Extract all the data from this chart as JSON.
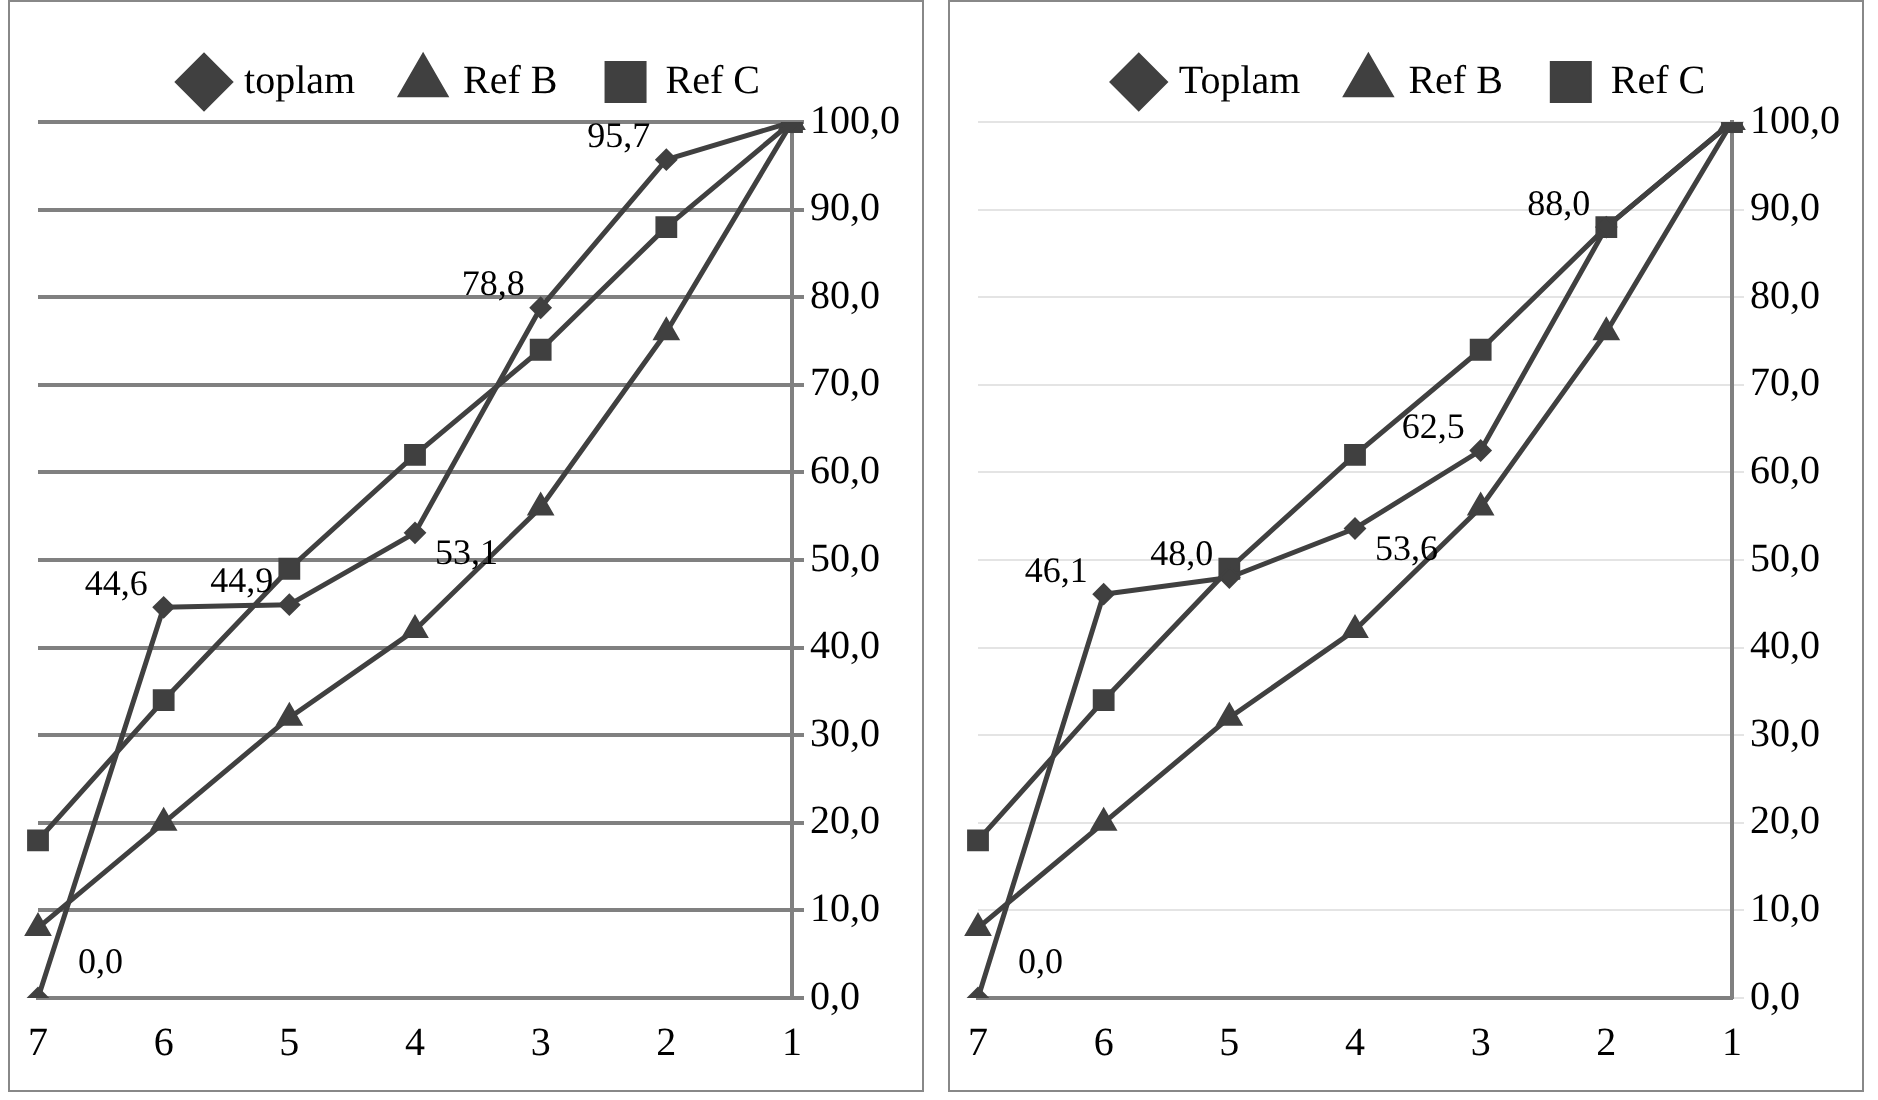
{
  "chart_data": [
    {
      "type": "line",
      "categories": [
        "7",
        "6",
        "5",
        "4",
        "3",
        "2",
        "1"
      ],
      "ylim": [
        0,
        100
      ],
      "yticks": [
        {
          "value": 0,
          "label": "0,0"
        },
        {
          "value": 10,
          "label": "10,0"
        },
        {
          "value": 20,
          "label": "20,0"
        },
        {
          "value": 30,
          "label": "30,0"
        },
        {
          "value": 40,
          "label": "40,0"
        },
        {
          "value": 50,
          "label": "50,0"
        },
        {
          "value": 60,
          "label": "60,0"
        },
        {
          "value": 70,
          "label": "70,0"
        },
        {
          "value": 80,
          "label": "80,0"
        },
        {
          "value": 90,
          "label": "90,0"
        },
        {
          "value": 100,
          "label": "100,0"
        }
      ],
      "grid": "y",
      "legend": "top",
      "series": [
        {
          "name": "toplam",
          "color": "#404040",
          "marker": "diamond",
          "values": [
            0,
            44.6,
            44.9,
            53.1,
            78.8,
            95.7,
            100
          ],
          "value_labels": [
            "0,0",
            "44,6",
            "44,9",
            "53,1",
            "78,8",
            "95,7",
            null
          ]
        },
        {
          "name": "Ref B",
          "color": "#404040",
          "marker": "triangle",
          "values": [
            8,
            20,
            32,
            42,
            56,
            76,
            100
          ]
        },
        {
          "name": "Ref C",
          "color": "#404040",
          "marker": "square",
          "values": [
            18,
            34,
            49,
            62,
            74,
            88,
            100
          ]
        }
      ]
    },
    {
      "type": "line",
      "categories": [
        "7",
        "6",
        "5",
        "4",
        "3",
        "2",
        "1"
      ],
      "ylim": [
        0,
        100
      ],
      "yticks": [
        {
          "value": 0,
          "label": "0,0"
        },
        {
          "value": 10,
          "label": "10,0"
        },
        {
          "value": 20,
          "label": "20,0"
        },
        {
          "value": 30,
          "label": "30,0"
        },
        {
          "value": 40,
          "label": "40,0"
        },
        {
          "value": 50,
          "label": "50,0"
        },
        {
          "value": 60,
          "label": "60,0"
        },
        {
          "value": 70,
          "label": "70,0"
        },
        {
          "value": 80,
          "label": "80,0"
        },
        {
          "value": 90,
          "label": "90,0"
        },
        {
          "value": 100,
          "label": "100,0"
        }
      ],
      "grid": "y",
      "legend": "top",
      "series": [
        {
          "name": "Toplam",
          "color": "#404040",
          "marker": "diamond",
          "values": [
            0,
            46.1,
            48.0,
            53.6,
            62.5,
            88.0,
            100
          ],
          "value_labels": [
            "0,0",
            "46,1",
            "48,0",
            "53,6",
            "62,5",
            "88,0",
            null
          ]
        },
        {
          "name": "Ref B",
          "color": "#404040",
          "marker": "triangle",
          "values": [
            8,
            20,
            32,
            42,
            56,
            76,
            100
          ]
        },
        {
          "name": "Ref C",
          "color": "#404040",
          "marker": "square",
          "values": [
            18,
            34,
            49,
            62,
            74,
            88,
            100
          ]
        }
      ]
    }
  ]
}
